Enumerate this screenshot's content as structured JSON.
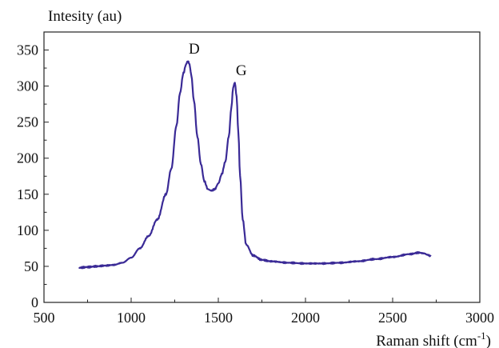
{
  "chart_data": {
    "type": "line",
    "ylabel": "Intesity (au)",
    "xlabel": "Raman shift (cm",
    "xlabel_sup": "-1",
    "xlabel_close": ")",
    "xlim": [
      500,
      3000
    ],
    "ylim": [
      0,
      375
    ],
    "x_ticks": [
      500,
      1000,
      1500,
      2000,
      2500,
      3000
    ],
    "y_ticks": [
      0,
      50,
      100,
      150,
      200,
      250,
      300,
      350
    ],
    "grid": false,
    "legend": "none",
    "line_color": "#3a2a96",
    "annotations": [
      {
        "text": "D",
        "x": 1325,
        "y": 336
      },
      {
        "text": "G",
        "x": 1595,
        "y": 306
      }
    ],
    "series": [
      {
        "x": [
          700,
          750,
          800,
          850,
          900,
          950,
          1000,
          1050,
          1100,
          1150,
          1200,
          1230,
          1260,
          1280,
          1300,
          1315,
          1325,
          1335,
          1345,
          1360,
          1380,
          1400,
          1420,
          1440,
          1460,
          1480,
          1500,
          1520,
          1540,
          1560,
          1575,
          1585,
          1595,
          1605,
          1615,
          1625,
          1640,
          1660,
          1700,
          1750,
          1800,
          1900,
          2000,
          2100,
          2200,
          2300,
          2400,
          2500,
          2600,
          2650,
          2680,
          2700,
          2720
        ],
        "values": [
          48,
          49,
          50,
          51,
          52,
          55,
          62,
          75,
          92,
          115,
          150,
          185,
          245,
          290,
          318,
          330,
          335,
          330,
          315,
          280,
          230,
          192,
          168,
          157,
          155,
          157,
          165,
          178,
          195,
          230,
          270,
          298,
          305,
          285,
          235,
          175,
          115,
          80,
          65,
          59,
          57,
          55,
          54,
          54,
          55,
          57,
          60,
          63,
          67,
          69,
          68,
          66,
          64
        ]
      }
    ]
  }
}
